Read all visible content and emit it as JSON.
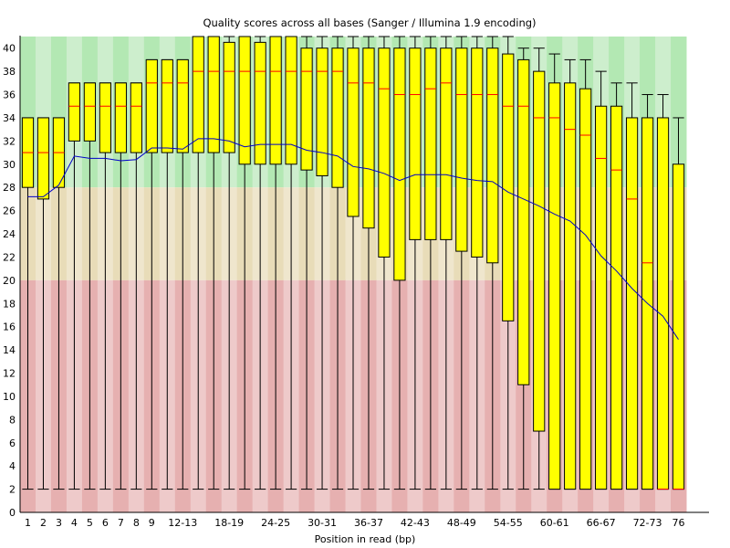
{
  "chart_data": {
    "type": "boxplot",
    "title": "Quality scores across all bases (Sanger / Illumina 1.9 encoding)",
    "xlabel": "Position in read (bp)",
    "ylabel": "",
    "ylim": [
      0,
      41
    ],
    "y_ticks": [
      0,
      2,
      4,
      6,
      8,
      10,
      12,
      14,
      16,
      18,
      20,
      22,
      24,
      26,
      28,
      30,
      32,
      34,
      36,
      38,
      40
    ],
    "grid": false,
    "background_zones": [
      {
        "name": "good",
        "from": 28,
        "to": 41,
        "colors": [
          "#b3e8b3",
          "#cdeecd"
        ]
      },
      {
        "name": "reasonable",
        "from": 20,
        "to": 28,
        "colors": [
          "#e8dcb8",
          "#efe6cd"
        ]
      },
      {
        "name": "poor",
        "from": 0,
        "to": 20,
        "colors": [
          "#e6b0b0",
          "#eecaca"
        ]
      }
    ],
    "colors": {
      "box_fill": "#ffff00",
      "box_stroke": "#000000",
      "median": "#ff0000",
      "mean_line": "#0000c8"
    },
    "categories": [
      "1",
      "2",
      "3",
      "4",
      "5",
      "6",
      "7",
      "8",
      "9",
      "10-11",
      "12-13",
      "14-15",
      "16-17",
      "18-19",
      "20-21",
      "22-23",
      "24-25",
      "26-27",
      "28-29",
      "30-31",
      "32-33",
      "34-35",
      "36-37",
      "38-39",
      "40-41",
      "42-43",
      "44-45",
      "46-47",
      "48-49",
      "50-51",
      "52-53",
      "54-55",
      "56-57",
      "58-59",
      "60-61",
      "62-63",
      "64-65",
      "66-67",
      "68-69",
      "70-71",
      "72-73",
      "74-75",
      "76"
    ],
    "x_tick_labels": [
      "1",
      "2",
      "3",
      "4",
      "5",
      "6",
      "7",
      "8",
      "9",
      "",
      "12-13",
      "",
      "",
      "18-19",
      "",
      "",
      "24-25",
      "",
      "",
      "30-31",
      "",
      "",
      "36-37",
      "",
      "",
      "42-43",
      "",
      "",
      "48-49",
      "",
      "",
      "54-55",
      "",
      "",
      "60-61",
      "",
      "",
      "66-67",
      "",
      "",
      "72-73",
      "",
      "76"
    ],
    "series": [
      {
        "name": "lower_whisker",
        "values": [
          2,
          2,
          2,
          2,
          2,
          2,
          2,
          2,
          2,
          2,
          2,
          2,
          2,
          2,
          2,
          2,
          2,
          2,
          2,
          2,
          2,
          2,
          2,
          2,
          2,
          2,
          2,
          2,
          2,
          2,
          2,
          2,
          2,
          2,
          2,
          2,
          2,
          2,
          2,
          2,
          2,
          2,
          2
        ]
      },
      {
        "name": "q1",
        "values": [
          28,
          27,
          28,
          32,
          32,
          31,
          31,
          31,
          31,
          31,
          31,
          31,
          31,
          31,
          30,
          30,
          30,
          30,
          29.5,
          29,
          28,
          25.5,
          24.5,
          22,
          20,
          23.5,
          23.5,
          23.5,
          22.5,
          22,
          21.5,
          16.5,
          11,
          7,
          2,
          2,
          2,
          2,
          2,
          2,
          2,
          2,
          2
        ]
      },
      {
        "name": "median",
        "values": [
          31,
          31,
          31,
          35,
          35,
          35,
          35,
          35,
          37,
          37,
          37,
          38,
          38,
          38,
          38,
          38,
          38,
          38,
          38,
          38,
          38,
          37,
          37,
          36.5,
          36,
          36,
          36.5,
          37,
          36,
          36,
          36,
          35,
          35,
          34,
          34,
          33,
          32.5,
          30.5,
          29.5,
          27,
          21.5,
          2,
          2
        ]
      },
      {
        "name": "q3",
        "values": [
          34,
          34,
          34,
          37,
          37,
          37,
          37,
          37,
          39,
          39,
          39,
          41,
          41,
          40.5,
          41,
          40.5,
          41,
          41,
          40,
          40,
          40,
          40,
          40,
          40,
          40,
          40,
          40,
          40,
          40,
          40,
          40,
          39.5,
          39,
          38,
          37,
          37,
          36.5,
          35,
          35,
          34,
          34,
          34,
          30
        ]
      },
      {
        "name": "upper_whisker",
        "values": [
          34,
          34,
          34,
          37,
          37,
          37,
          37,
          37,
          39,
          39,
          39,
          41,
          41,
          41,
          41,
          41,
          41,
          41,
          41,
          41,
          41,
          41,
          41,
          41,
          41,
          41,
          41,
          41,
          41,
          41,
          41,
          41,
          40,
          40,
          39.5,
          39,
          39,
          38,
          37,
          37,
          36,
          36,
          34
        ]
      },
      {
        "name": "mean",
        "values": [
          27.2,
          27.2,
          28.2,
          30.7,
          30.5,
          30.5,
          30.3,
          30.4,
          31.4,
          31.4,
          31.3,
          32.2,
          32.2,
          32.0,
          31.5,
          31.7,
          31.7,
          31.7,
          31.2,
          31.0,
          30.7,
          29.8,
          29.6,
          29.2,
          28.6,
          29.1,
          29.1,
          29.1,
          28.8,
          28.6,
          28.5,
          27.6,
          27.0,
          26.4,
          25.7,
          25.1,
          23.9,
          22.1,
          20.8,
          19.3,
          18.0,
          16.9,
          14.9
        ]
      }
    ]
  }
}
